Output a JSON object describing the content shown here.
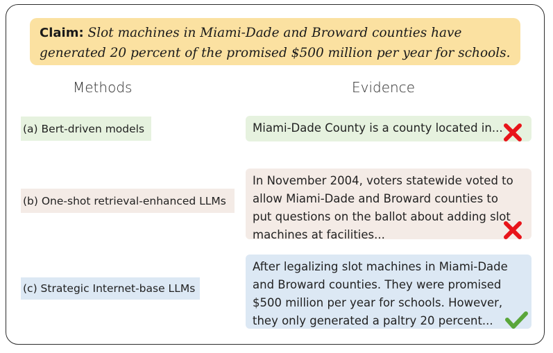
{
  "claim": {
    "label": "Claim",
    "separator": ":",
    "text": " Slot machines in Miami-Dade and Broward counties have generated 20 percent of the promised $500 million per year for schools."
  },
  "headers": {
    "methods": "Methods",
    "evidence": "Evidence"
  },
  "rows": [
    {
      "method": "(a) Bert-driven models",
      "evidence": "Miami-Dade County is a county located in...",
      "verdict": "incorrect",
      "verdict_icon": "cross-icon",
      "color": "#e6f2df"
    },
    {
      "method": "(b) One-shot retrieval-enhanced LLMs",
      "evidence": "In November 2004, voters statewide voted to allow Miami-Dade and Broward counties to put questions on the ballot about adding slot machines at facilities...",
      "verdict": "incorrect",
      "verdict_icon": "cross-icon",
      "color": "#f4ebe6"
    },
    {
      "method": "(c) Strategic Internet-base LLMs",
      "evidence": "After legalizing slot machines in Miami-Dade and Broward counties. They were promised $500 million per year for schools. However, they only generated a paltry 20 percent...",
      "verdict": "correct",
      "verdict_icon": "check-icon",
      "color": "#dce8f4"
    }
  ],
  "colors": {
    "claim_bg": "#fbe1a1",
    "cross": "#e8141a",
    "check": "#5aa63a"
  }
}
